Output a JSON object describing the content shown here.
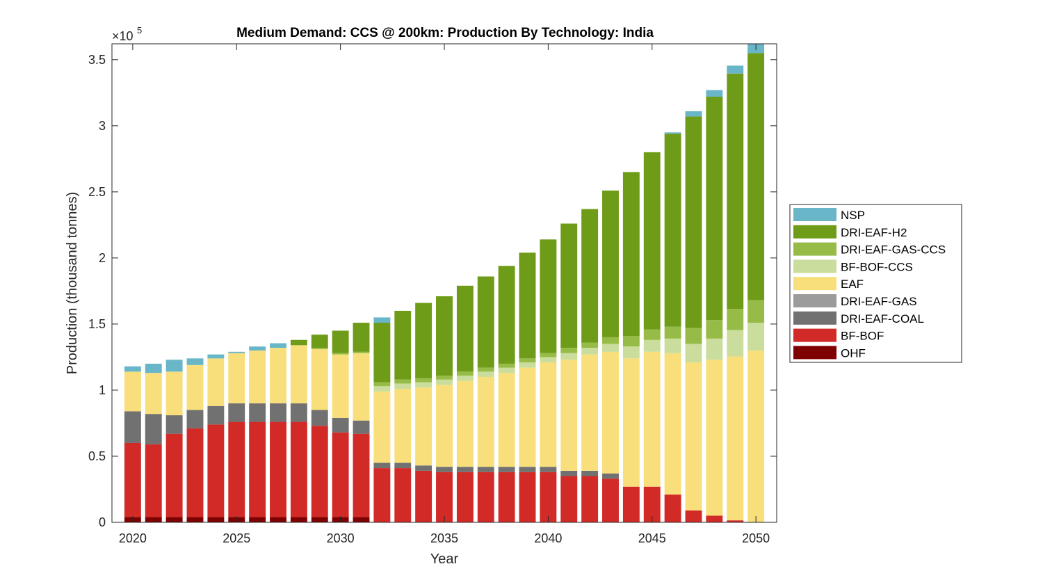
{
  "chart_data": {
    "type": "bar",
    "stacked": true,
    "title": "Medium Demand: CCS @ 200km: Production By Technology: India",
    "xlabel": "Year",
    "ylabel": "Production (thousand tonnes)",
    "y_exponent": "×10",
    "y_exponent_power": "5",
    "xlim": [
      2019,
      2051
    ],
    "ylim": [
      0,
      362000
    ],
    "xticks": [
      "2020",
      "2025",
      "2030",
      "2035",
      "2040",
      "2045",
      "2050"
    ],
    "yticks": [
      "0",
      "0.5",
      "1",
      "1.5",
      "2",
      "2.5",
      "3",
      "3.5"
    ],
    "legend_position": "right",
    "categories": [
      2020,
      2021,
      2022,
      2023,
      2024,
      2025,
      2026,
      2027,
      2028,
      2029,
      2030,
      2031,
      2032,
      2033,
      2034,
      2035,
      2036,
      2037,
      2038,
      2039,
      2040,
      2041,
      2042,
      2043,
      2044,
      2045,
      2046,
      2047,
      2048,
      2049,
      2050
    ],
    "series": [
      {
        "name": "OHF",
        "color": "#7f0000",
        "values": [
          4000,
          4000,
          4000,
          4000,
          4000,
          4000,
          4000,
          4000,
          4000,
          4000,
          4000,
          4000,
          0,
          0,
          0,
          0,
          0,
          0,
          0,
          0,
          0,
          0,
          0,
          0,
          0,
          0,
          0,
          0,
          0,
          0,
          0
        ]
      },
      {
        "name": "BF-BOF",
        "color": "#d22a26",
        "values": [
          56000,
          55000,
          63000,
          67000,
          70000,
          72000,
          72000,
          72000,
          72000,
          69000,
          64000,
          63000,
          41000,
          41000,
          39000,
          38000,
          38000,
          38000,
          38000,
          38000,
          38000,
          35000,
          35000,
          33000,
          27000,
          27000,
          21000,
          9000,
          5000,
          1500,
          0
        ]
      },
      {
        "name": "DRI-EAF-COAL",
        "color": "#717171",
        "values": [
          24000,
          23000,
          14000,
          14000,
          14000,
          14000,
          14000,
          14000,
          14000,
          12000,
          11000,
          10000,
          4000,
          4000,
          4000,
          4000,
          4000,
          4000,
          4000,
          4000,
          4000,
          4000,
          4000,
          4000,
          0,
          0,
          0,
          0,
          0,
          0,
          0
        ]
      },
      {
        "name": "DRI-EAF-GAS",
        "color": "#9b9b9b",
        "values": [
          0,
          0,
          0,
          0,
          0,
          0,
          0,
          0,
          0,
          0,
          0,
          0,
          0,
          0,
          0,
          0,
          0,
          0,
          0,
          0,
          0,
          0,
          0,
          0,
          0,
          0,
          0,
          0,
          0,
          0,
          0
        ]
      },
      {
        "name": "EAF",
        "color": "#f8df7c",
        "values": [
          30000,
          31000,
          33000,
          34000,
          36000,
          38000,
          40000,
          42000,
          44000,
          46000,
          48000,
          51000,
          54000,
          56000,
          59000,
          62000,
          65000,
          68000,
          71000,
          75000,
          79000,
          84000,
          88000,
          92000,
          97000,
          102000,
          107000,
          112000,
          118000,
          124000,
          130000
        ]
      },
      {
        "name": "BF-BOF-CCS",
        "color": "#cadd9c",
        "values": [
          0,
          0,
          0,
          0,
          0,
          0,
          0,
          0,
          0,
          0,
          0,
          0,
          4000,
          4000,
          4000,
          4000,
          4000,
          4000,
          4000,
          4000,
          4000,
          5000,
          5000,
          6000,
          9000,
          9000,
          11000,
          14000,
          16000,
          20000,
          21000
        ]
      },
      {
        "name": "DRI-EAF-GAS-CCS",
        "color": "#97bb47",
        "values": [
          0,
          0,
          0,
          0,
          0,
          0,
          0,
          0,
          0,
          1000,
          1000,
          1000,
          3000,
          3000,
          3000,
          3000,
          3000,
          3000,
          3000,
          3000,
          3000,
          4000,
          4000,
          5000,
          8000,
          8000,
          9000,
          12000,
          14000,
          16000,
          17000
        ]
      },
      {
        "name": "DRI-EAF-H2",
        "color": "#6e9c18",
        "values": [
          0,
          0,
          0,
          0,
          0,
          0,
          0,
          0,
          4000,
          10000,
          17000,
          22000,
          45000,
          52000,
          57000,
          60000,
          65000,
          69000,
          74000,
          80000,
          86000,
          94000,
          101000,
          111000,
          124000,
          134000,
          146000,
          160000,
          169000,
          178000,
          187000
        ]
      },
      {
        "name": "NSP",
        "color": "#68b6c8",
        "values": [
          4000,
          7000,
          9000,
          5000,
          3000,
          1000,
          3000,
          3500,
          0,
          0,
          0,
          0,
          4000,
          0,
          0,
          0,
          0,
          0,
          0,
          0,
          0,
          0,
          0,
          0,
          0,
          0,
          1000,
          4000,
          5000,
          6000,
          7000
        ]
      }
    ],
    "legend_order": [
      "NSP",
      "DRI-EAF-H2",
      "DRI-EAF-GAS-CCS",
      "BF-BOF-CCS",
      "EAF",
      "DRI-EAF-GAS",
      "DRI-EAF-COAL",
      "BF-BOF",
      "OHF"
    ]
  }
}
